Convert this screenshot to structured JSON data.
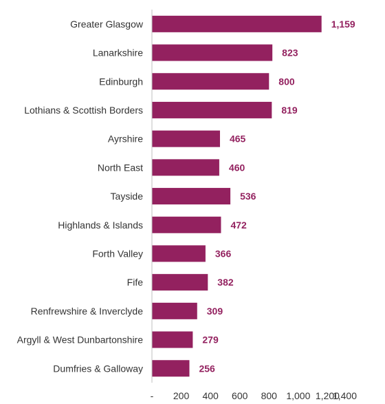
{
  "chart_data": {
    "type": "bar",
    "orientation": "horizontal",
    "categories": [
      "Greater Glasgow",
      "Lanarkshire",
      "Edinburgh",
      "Lothians & Scottish Borders",
      "Ayrshire",
      "North East",
      "Tayside",
      "Highlands & Islands",
      "Forth Valley",
      "Fife",
      "Renfrewshire & Inverclyde",
      "Argyll & West Dunbartonshire",
      "Dumfries & Galloway"
    ],
    "values": [
      1159,
      823,
      800,
      819,
      465,
      460,
      536,
      472,
      366,
      382,
      309,
      279,
      256
    ],
    "value_labels": [
      "1,159",
      "823",
      "800",
      "819",
      "465",
      "460",
      "536",
      "472",
      "366",
      "382",
      "309",
      "279",
      "256"
    ],
    "xlim": [
      0,
      1400
    ],
    "x_ticks": [
      0,
      200,
      400,
      600,
      800,
      1000,
      1200,
      1400
    ],
    "x_tick_labels": [
      "-",
      "200",
      "400",
      "600",
      "800",
      "1,000",
      "1,200",
      "1,400"
    ],
    "grid": false,
    "bar_color": "#93215F",
    "label_color": "#93215F"
  }
}
